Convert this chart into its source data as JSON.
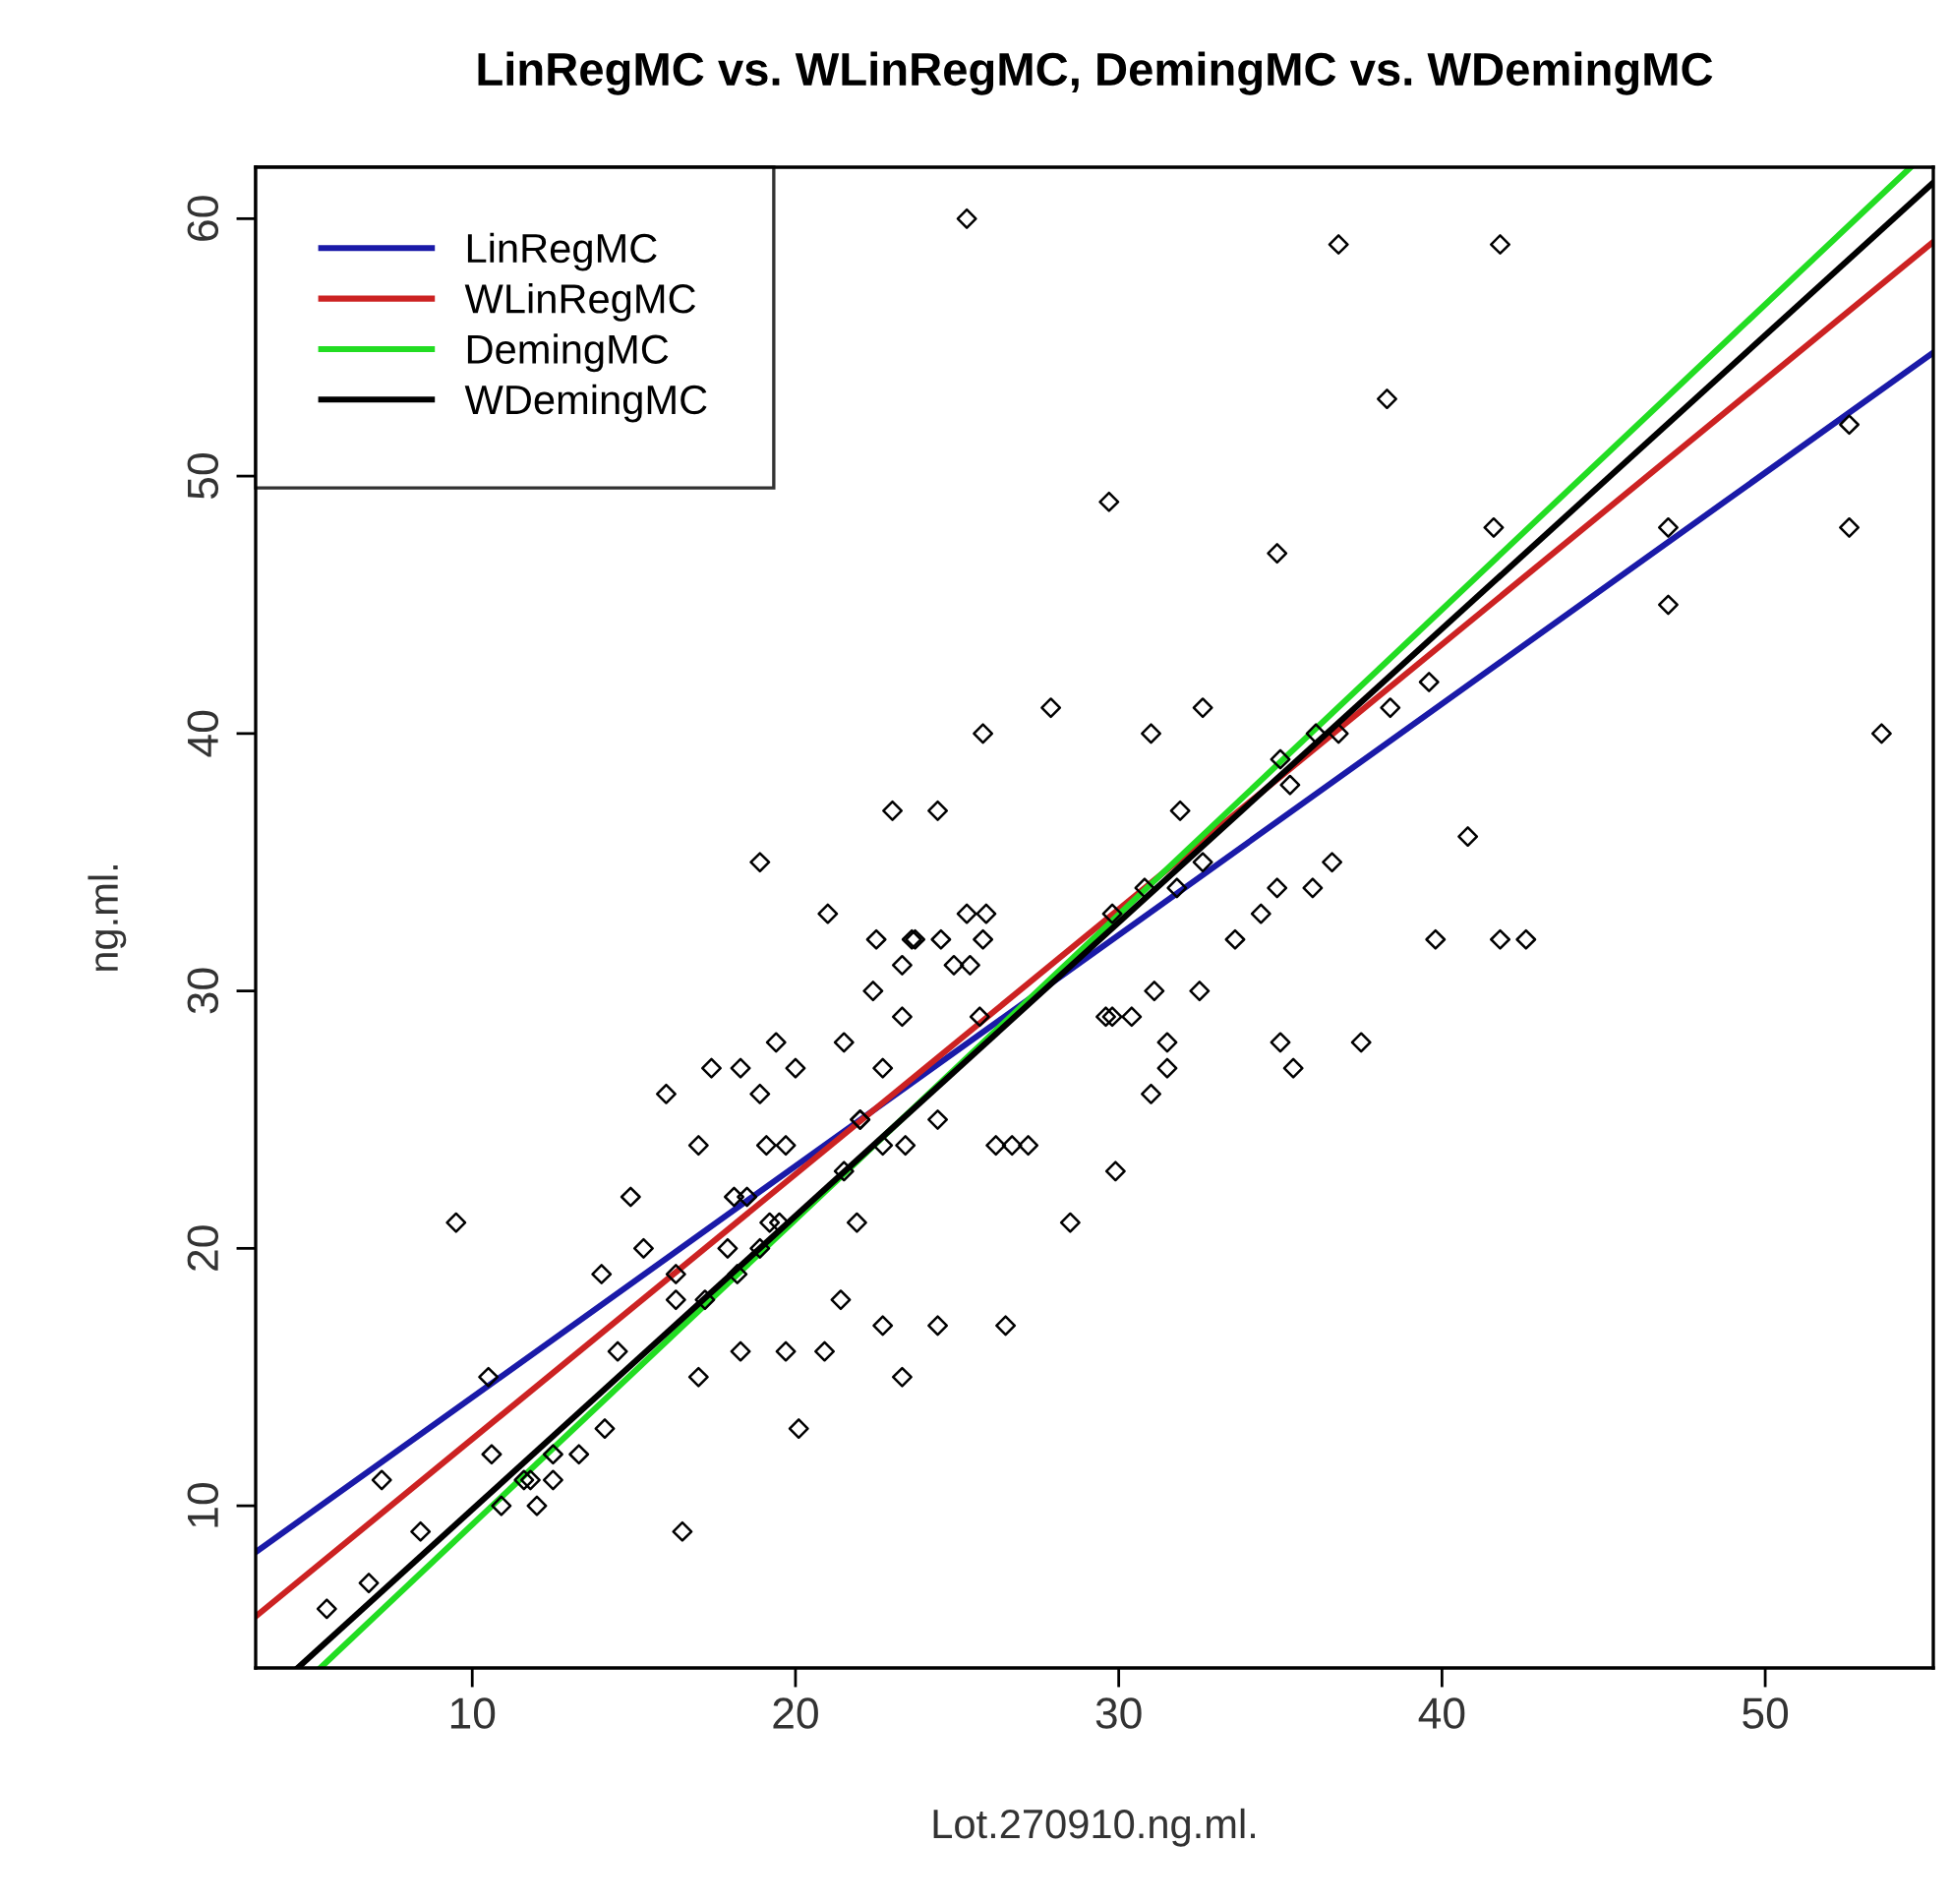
{
  "chart_data": {
    "type": "scatter",
    "title": "LinRegMC vs. WLinRegMC, DemingMC vs. WDemingMC",
    "xlabel": "Lot.270910.ng.ml.",
    "ylabel": "ng.ml.",
    "xlim": [
      3.3,
      55.2
    ],
    "ylim": [
      3.7,
      62.0
    ],
    "xticks": [
      10,
      20,
      30,
      40,
      50
    ],
    "yticks": [
      10,
      20,
      30,
      40,
      50,
      60
    ],
    "grid": false,
    "legend": "top left",
    "series": [
      {
        "marker": "diamond",
        "color": "#000000",
        "x": [
          25.3,
          36.8,
          41.8,
          38.3,
          52.6,
          52.6,
          41.6,
          47,
          47,
          29.7,
          34.9,
          53.6,
          27.9,
          32.6,
          38.4,
          39.6,
          25.8,
          31.0,
          36.1,
          36.8,
          35,
          35.3,
          31.9,
          23,
          24.4,
          40.8,
          18.9,
          32.6,
          36.6,
          30.8,
          31.8,
          34.9,
          36,
          21,
          22.5,
          23.7,
          23.6,
          25.3,
          25.9,
          29.8,
          34.4,
          24.5,
          25.8,
          33.6,
          39.8,
          41.8,
          42.6,
          23.3,
          24.9,
          25.4,
          22.4,
          31.1,
          32.5,
          23.3,
          25.7,
          29.6,
          29.8,
          30.4,
          21.5,
          19.4,
          31.5,
          35,
          37.5,
          17.4,
          18.3,
          20,
          22.7,
          31.5,
          35.4,
          16,
          18.9,
          31,
          22,
          22,
          24.4,
          17,
          19.1,
          19.7,
          22.7,
          23.4,
          26.2,
          26.7,
          27.2,
          21.5,
          29.9,
          14.9,
          18.1,
          18.5,
          9.5,
          19.2,
          19.5,
          21.9,
          28.5,
          15.3,
          18.9,
          17.9,
          14,
          16.3,
          18.2,
          16.3,
          17.2,
          21.4,
          26.5,
          22.7,
          24.4,
          14.5,
          18.3,
          19.7,
          20.9,
          10.5,
          17,
          23.3,
          20.1,
          14.1,
          10.6,
          12.5,
          13.3,
          7.2,
          11.6,
          11.8,
          12.5,
          10.9,
          12,
          8.4,
          16.5,
          6.8,
          5.5
        ],
        "values": [
          60,
          59,
          59,
          53,
          52,
          48,
          48,
          48,
          45,
          49,
          47,
          40,
          41,
          41,
          41,
          42,
          40,
          40,
          40,
          40,
          39,
          38,
          37,
          37,
          37,
          36,
          35,
          35,
          35,
          34,
          34,
          34,
          34,
          33,
          32,
          32,
          32,
          33,
          33,
          33,
          33,
          32,
          32,
          32,
          32,
          32,
          32,
          31,
          31,
          31,
          30,
          30,
          30,
          29,
          29,
          29,
          29,
          29,
          28,
          28,
          28,
          28,
          28,
          27,
          27,
          27,
          27,
          27,
          27,
          26,
          26,
          26,
          25,
          25,
          25,
          24,
          24,
          24,
          24,
          24,
          24,
          24,
          24,
          23,
          23,
          22,
          22,
          22,
          21,
          21,
          21,
          21,
          21,
          20,
          20,
          20,
          19,
          19,
          19,
          18,
          18,
          18,
          17,
          17,
          17,
          16,
          16,
          16,
          16,
          15,
          15,
          15,
          13,
          13,
          12,
          12,
          12,
          11,
          11,
          11,
          11,
          10,
          10,
          9,
          9,
          7,
          6
        ]
      },
      {
        "type": "line",
        "marker": "none",
        "name": "LinRegMC",
        "color": "#1a1aa8",
        "x": [
          3.3,
          55.2
        ],
        "values": [
          8.2,
          54.8
        ]
      },
      {
        "type": "line",
        "marker": "none",
        "name": "WLinRegMC",
        "color": "#cc2222",
        "x": [
          3.3,
          55.2
        ],
        "values": [
          5.7,
          59.1
        ]
      },
      {
        "type": "line",
        "marker": "none",
        "name": "DemingMC",
        "color": "#22dd22",
        "x": [
          5.3,
          54.5
        ],
        "values": [
          3.7,
          62.0
        ]
      },
      {
        "type": "line",
        "marker": "none",
        "name": "WDemingMC",
        "color": "#000000",
        "x": [
          4.6,
          55.2
        ],
        "values": [
          3.7,
          61.4
        ]
      }
    ]
  }
}
